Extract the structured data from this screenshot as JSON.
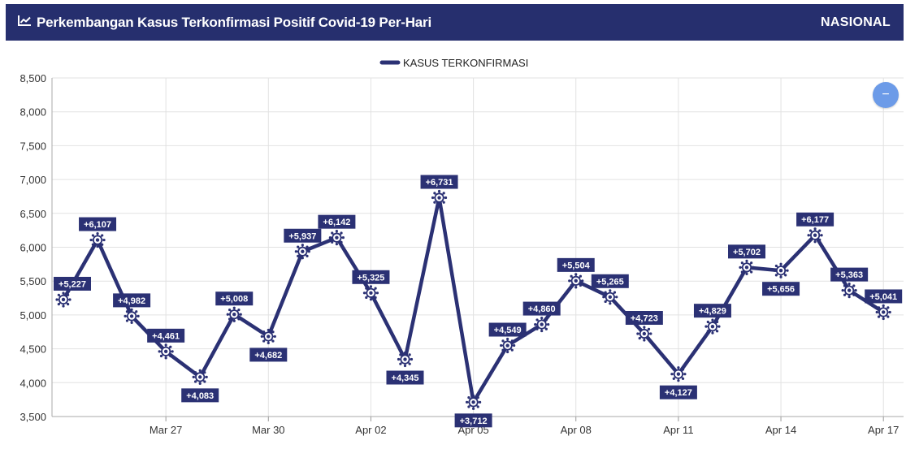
{
  "header": {
    "title": "Perkembangan Kasus Terkonfirmasi Positif Covid-19 Per-Hari",
    "scope": "NASIONAL",
    "icon": "chart-line-icon"
  },
  "controls": {
    "collapse_label": "−",
    "collapse_icon": "minus-icon"
  },
  "colors": {
    "header_bg": "#262f6e",
    "series": "#2b3174",
    "label_bg": "#2b3174",
    "label_text": "#ffffff",
    "grid": "#e2e2e2",
    "button": "#6c9be8"
  },
  "chart_data": {
    "type": "line",
    "title": "",
    "xlabel": "",
    "ylabel": "",
    "ylim": [
      3500,
      8500
    ],
    "yticks": [
      3500,
      4000,
      4500,
      5000,
      5500,
      6000,
      6500,
      7000,
      7500,
      8000,
      8500
    ],
    "ytick_labels": [
      "3,500",
      "4,000",
      "4,500",
      "5,000",
      "5,500",
      "6,000",
      "6,500",
      "7,000",
      "7,500",
      "8,000",
      "8,500"
    ],
    "x_dates": [
      "Mar 24",
      "Mar 25",
      "Mar 26",
      "Mar 27",
      "Mar 28",
      "Mar 29",
      "Mar 30",
      "Mar 31",
      "Apr 01",
      "Apr 02",
      "Apr 03",
      "Apr 04",
      "Apr 05",
      "Apr 06",
      "Apr 07",
      "Apr 08",
      "Apr 09",
      "Apr 10",
      "Apr 11",
      "Apr 12",
      "Apr 13",
      "Apr 14",
      "Apr 15",
      "Apr 16",
      "Apr 17"
    ],
    "xticks": [
      "Mar 27",
      "Mar 30",
      "Apr 02",
      "Apr 05",
      "Apr 08",
      "Apr 11",
      "Apr 14",
      "Apr 17"
    ],
    "grid": true,
    "legend": "top-center",
    "series": [
      {
        "name": "KASUS TERKONFIRMASI",
        "values": [
          5227,
          6107,
          4982,
          4461,
          4083,
          5008,
          4682,
          5937,
          6142,
          5325,
          4345,
          6731,
          3712,
          4549,
          4860,
          5504,
          5265,
          4723,
          4127,
          4829,
          5702,
          5656,
          6177,
          5363,
          5041
        ],
        "labels": [
          "+5,227",
          "+6,107",
          "+4,982",
          "+4,461",
          "+4,083",
          "+5,008",
          "+4,682",
          "+5,937",
          "+6,142",
          "+5,325",
          "+4,345",
          "+6,731",
          "+3,712",
          "+4,549",
          "+4,860",
          "+5,504",
          "+5,265",
          "+4,723",
          "+4,127",
          "+4,829",
          "+5,702",
          "+5,656",
          "+6,177",
          "+5,363",
          "+5,041"
        ]
      }
    ]
  }
}
